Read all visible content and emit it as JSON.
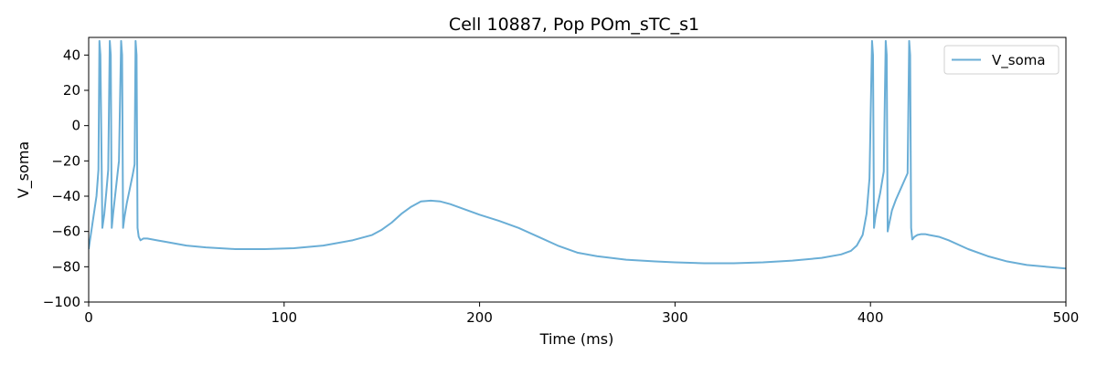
{
  "chart_data": {
    "type": "line",
    "title": "Cell 10887, Pop POm_sTC_s1",
    "xlabel": "Time (ms)",
    "ylabel": "V_soma",
    "xlim": [
      0,
      500
    ],
    "ylim": [
      -100,
      50
    ],
    "xticks": [
      0,
      100,
      200,
      300,
      400,
      500
    ],
    "yticks": [
      -100,
      -80,
      -60,
      -40,
      -20,
      0,
      20,
      40
    ],
    "grid": false,
    "legend": "top-right",
    "series": [
      {
        "name": "V_soma",
        "color": "#6aaed6",
        "x": [
          0,
          2,
          4,
          5,
          5.5,
          6,
          7,
          8,
          9,
          10,
          10.8,
          11.3,
          11.8,
          12.5,
          13.5,
          14.5,
          15.5,
          16.6,
          17.1,
          17.6,
          18.3,
          19.5,
          21,
          22.5,
          23.5,
          24,
          24.5,
          25,
          25.6,
          26.5,
          28,
          30,
          35,
          40,
          50,
          60,
          75,
          90,
          105,
          120,
          135,
          145,
          150,
          155,
          160,
          165,
          170,
          175,
          180,
          185,
          190,
          195,
          200,
          210,
          220,
          230,
          240,
          250,
          260,
          275,
          290,
          300,
          315,
          330,
          345,
          360,
          375,
          385,
          390,
          393,
          396,
          398,
          399.5,
          400.8,
          401.3,
          401.8,
          402.5,
          403.5,
          405,
          406.8,
          407.8,
          408.3,
          408.8,
          409.5,
          411,
          413,
          415,
          417,
          419,
          419.8,
          420.3,
          420.8,
          421.4,
          422.5,
          424,
          426,
          428,
          430,
          435,
          440,
          450,
          460,
          470,
          480,
          490,
          500
        ],
        "y": [
          -70,
          -55,
          -40,
          -25,
          48,
          40,
          -58,
          -50,
          -38,
          -25,
          48,
          40,
          -58,
          -50,
          -40,
          -30,
          -20,
          48,
          40,
          -58,
          -52,
          -44,
          -36,
          -28,
          -22,
          48,
          40,
          -58,
          -63,
          -65,
          -64,
          -64,
          -65,
          -66,
          -68,
          -69,
          -70,
          -70,
          -69.5,
          -68,
          -65,
          -62,
          -59,
          -55,
          -50,
          -46,
          -43,
          -42.5,
          -43,
          -44.5,
          -46.5,
          -48.5,
          -50.5,
          -54,
          -58,
          -63,
          -68,
          -72,
          -74,
          -76,
          -77,
          -77.5,
          -78,
          -78,
          -77.5,
          -76.5,
          -75,
          -73,
          -71,
          -68,
          -62,
          -50,
          -30,
          48,
          40,
          -58,
          -52,
          -46,
          -38,
          -26,
          48,
          40,
          -60,
          -56,
          -48,
          -42,
          -37,
          -32,
          -27,
          48,
          40,
          -58,
          -64.5,
          -63,
          -62,
          -61.5,
          -61.5,
          -62,
          -63,
          -65,
          -70,
          -74,
          -77,
          -79,
          -80,
          -81
        ]
      }
    ]
  }
}
